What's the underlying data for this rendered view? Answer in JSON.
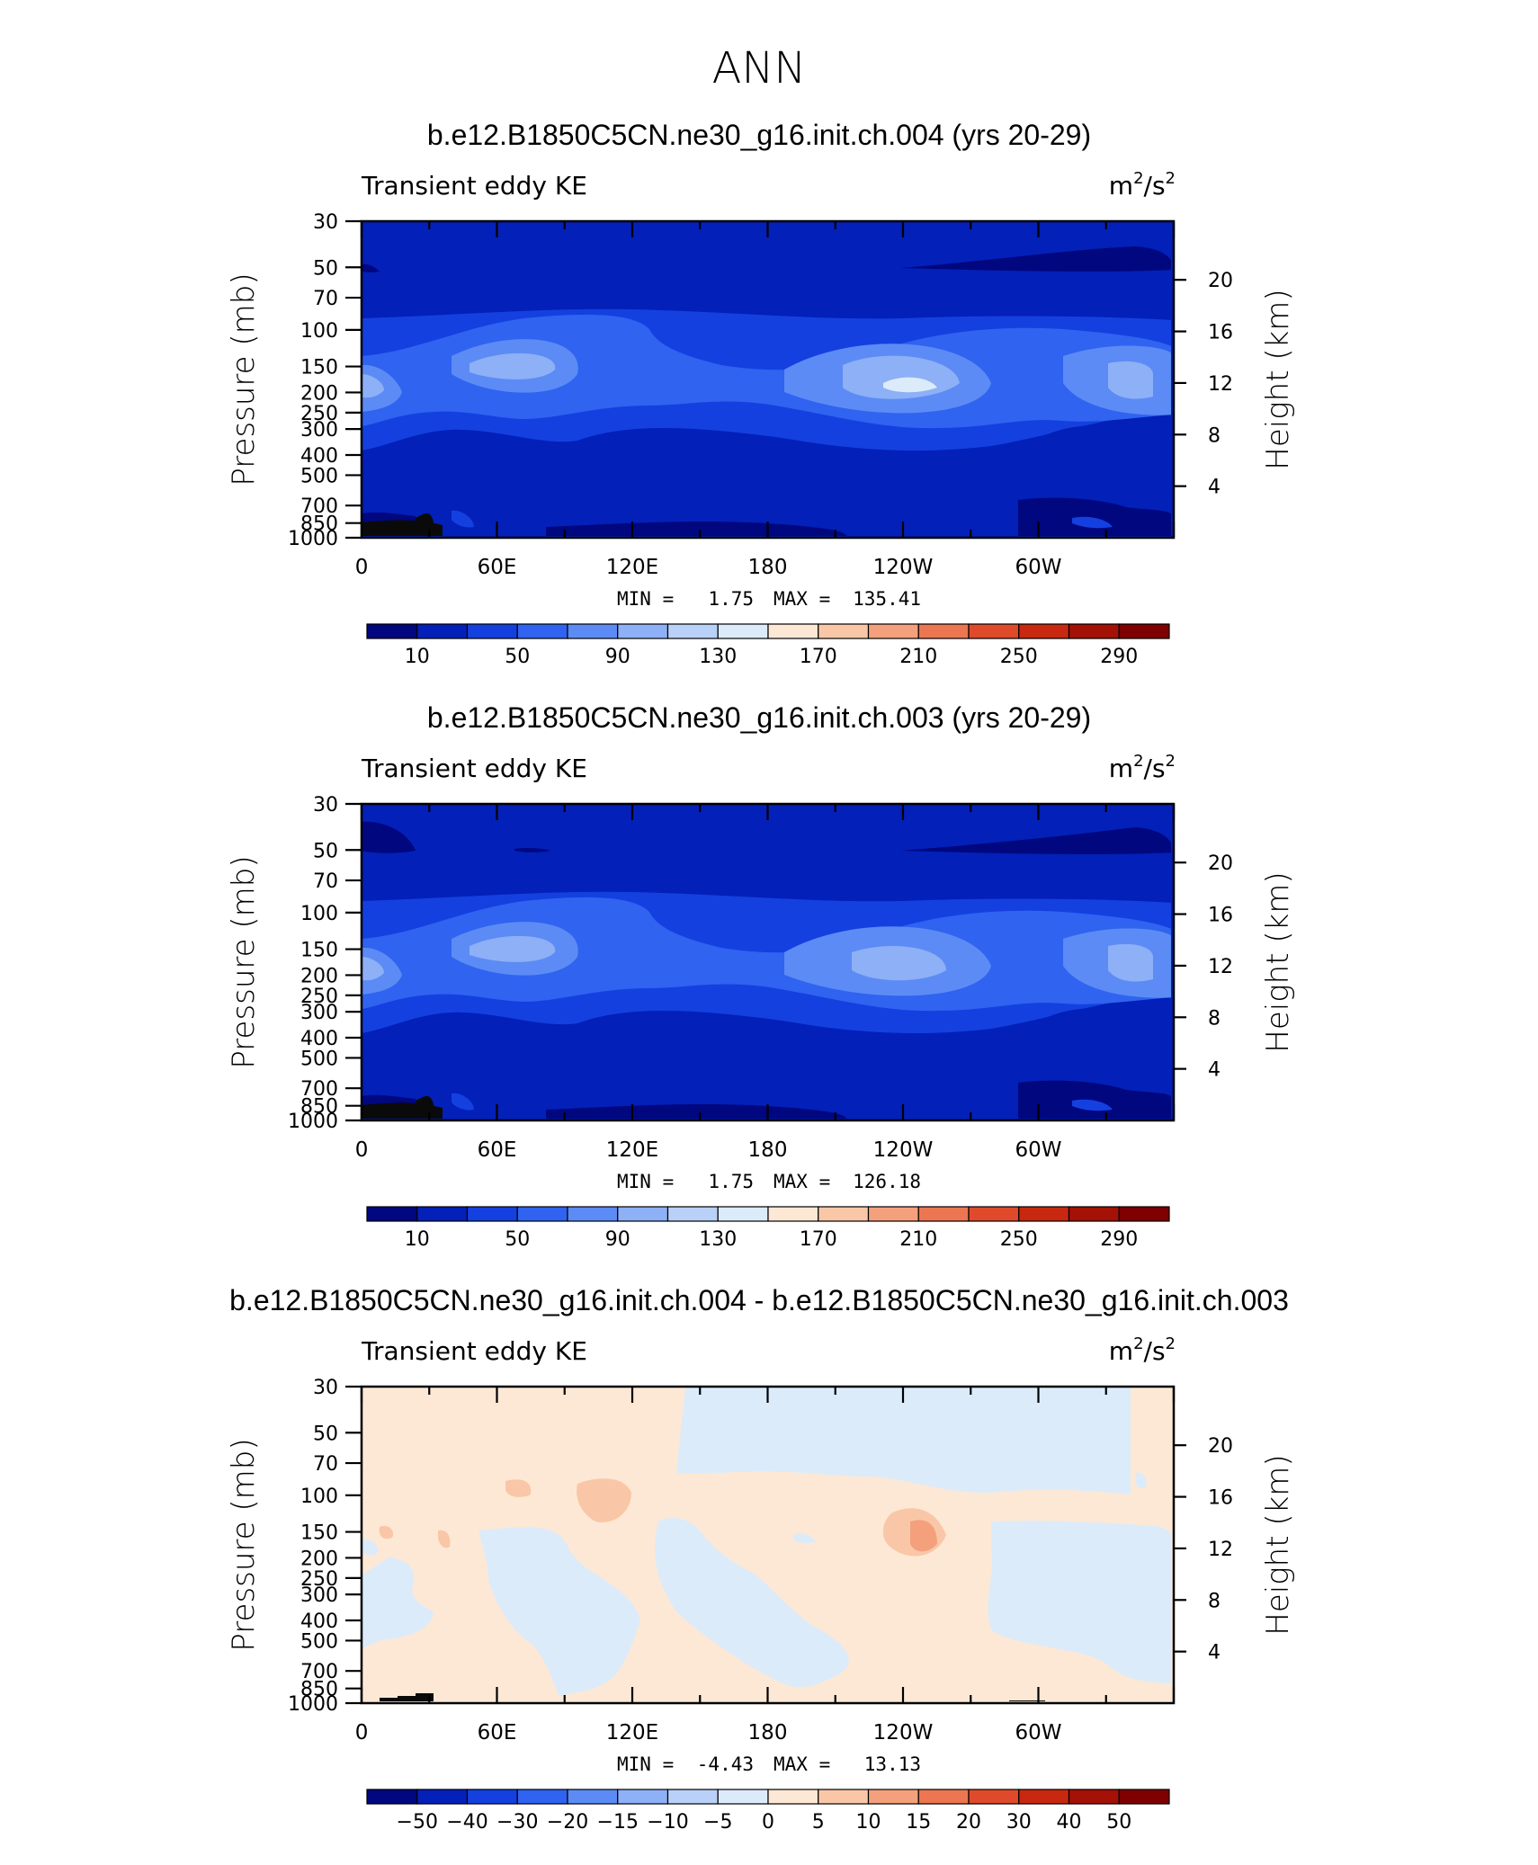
{
  "figure": {
    "title": "ANN"
  },
  "chart_data": [
    {
      "type": "heatmap",
      "title": "b.e12.B1850C5CN.ne30_g16.init.ch.004 (yrs 20-29)",
      "left_string": "Transient eddy KE",
      "right_string_base": "m",
      "right_string_exp1": "2",
      "right_string_mid": "/s",
      "right_string_exp2": "2",
      "ylabel_left": "Pressure  (mb)",
      "ylabel_right": "Height  (km)",
      "x_ticks": [
        "0",
        "60E",
        "120E",
        "180",
        "120W",
        "60W"
      ],
      "y_ticks_pressure": [
        "30",
        "50",
        "70",
        "100",
        "150",
        "200",
        "250",
        "300",
        "400",
        "500",
        "700",
        "850",
        "1000"
      ],
      "y_ticks_height": [
        "20",
        "16",
        "12",
        "8",
        "4"
      ],
      "stats_min_label": "MIN =",
      "stats_min": "1.75",
      "stats_max_label": "MAX =",
      "stats_max": "135.41",
      "colorbar_labels": [
        "10",
        "50",
        "90",
        "130",
        "170",
        "210",
        "250",
        "290"
      ],
      "colorbar_colors": [
        "#00077f",
        "#0320b8",
        "#1440e0",
        "#2f63f0",
        "#5c8bf5",
        "#8db0f6",
        "#b9d0f8",
        "#dcebfa",
        "#fde8d5",
        "#f9c7a7",
        "#f4a07c",
        "#ec7652",
        "#df4a2b",
        "#c8280f",
        "#a41106",
        "#7e0000"
      ],
      "xlim": [
        0,
        360
      ],
      "ylim_mb": [
        1000,
        30
      ]
    },
    {
      "type": "heatmap",
      "title": "b.e12.B1850C5CN.ne30_g16.init.ch.003 (yrs 20-29)",
      "left_string": "Transient eddy KE",
      "right_string_base": "m",
      "right_string_exp1": "2",
      "right_string_mid": "/s",
      "right_string_exp2": "2",
      "ylabel_left": "Pressure  (mb)",
      "ylabel_right": "Height  (km)",
      "x_ticks": [
        "0",
        "60E",
        "120E",
        "180",
        "120W",
        "60W"
      ],
      "y_ticks_pressure": [
        "30",
        "50",
        "70",
        "100",
        "150",
        "200",
        "250",
        "300",
        "400",
        "500",
        "700",
        "850",
        "1000"
      ],
      "y_ticks_height": [
        "20",
        "16",
        "12",
        "8",
        "4"
      ],
      "stats_min_label": "MIN =",
      "stats_min": "1.75",
      "stats_max_label": "MAX =",
      "stats_max": "126.18",
      "colorbar_labels": [
        "10",
        "50",
        "90",
        "130",
        "170",
        "210",
        "250",
        "290"
      ],
      "colorbar_colors": [
        "#00077f",
        "#0320b8",
        "#1440e0",
        "#2f63f0",
        "#5c8bf5",
        "#8db0f6",
        "#b9d0f8",
        "#dcebfa",
        "#fde8d5",
        "#f9c7a7",
        "#f4a07c",
        "#ec7652",
        "#df4a2b",
        "#c8280f",
        "#a41106",
        "#7e0000"
      ],
      "xlim": [
        0,
        360
      ],
      "ylim_mb": [
        1000,
        30
      ]
    },
    {
      "type": "heatmap",
      "title": "b.e12.B1850C5CN.ne30_g16.init.ch.004 - b.e12.B1850C5CN.ne30_g16.init.ch.003",
      "left_string": "Transient eddy KE",
      "right_string_base": "m",
      "right_string_exp1": "2",
      "right_string_mid": "/s",
      "right_string_exp2": "2",
      "ylabel_left": "Pressure  (mb)",
      "ylabel_right": "Height  (km)",
      "x_ticks": [
        "0",
        "60E",
        "120E",
        "180",
        "120W",
        "60W"
      ],
      "y_ticks_pressure": [
        "30",
        "50",
        "70",
        "100",
        "150",
        "200",
        "250",
        "300",
        "400",
        "500",
        "700",
        "850",
        "1000"
      ],
      "y_ticks_height": [
        "20",
        "16",
        "12",
        "8",
        "4"
      ],
      "stats_min_label": "MIN =",
      "stats_min": "-4.43",
      "stats_max_label": "MAX =",
      "stats_max": "13.13",
      "colorbar_labels": [
        "-50",
        "-40",
        "-30",
        "-20",
        "-15",
        "-10",
        "-5",
        "0",
        "5",
        "10",
        "15",
        "20",
        "30",
        "40",
        "50"
      ],
      "colorbar_colors": [
        "#00077f",
        "#0320b8",
        "#1440e0",
        "#2f63f0",
        "#5c8bf5",
        "#8db0f6",
        "#b9d0f8",
        "#dcebfa",
        "#fde8d5",
        "#f9c7a7",
        "#f4a07c",
        "#ec7652",
        "#df4a2b",
        "#c8280f",
        "#a41106",
        "#7e0000"
      ],
      "xlim": [
        0,
        360
      ],
      "ylim_mb": [
        1000,
        30
      ]
    }
  ]
}
